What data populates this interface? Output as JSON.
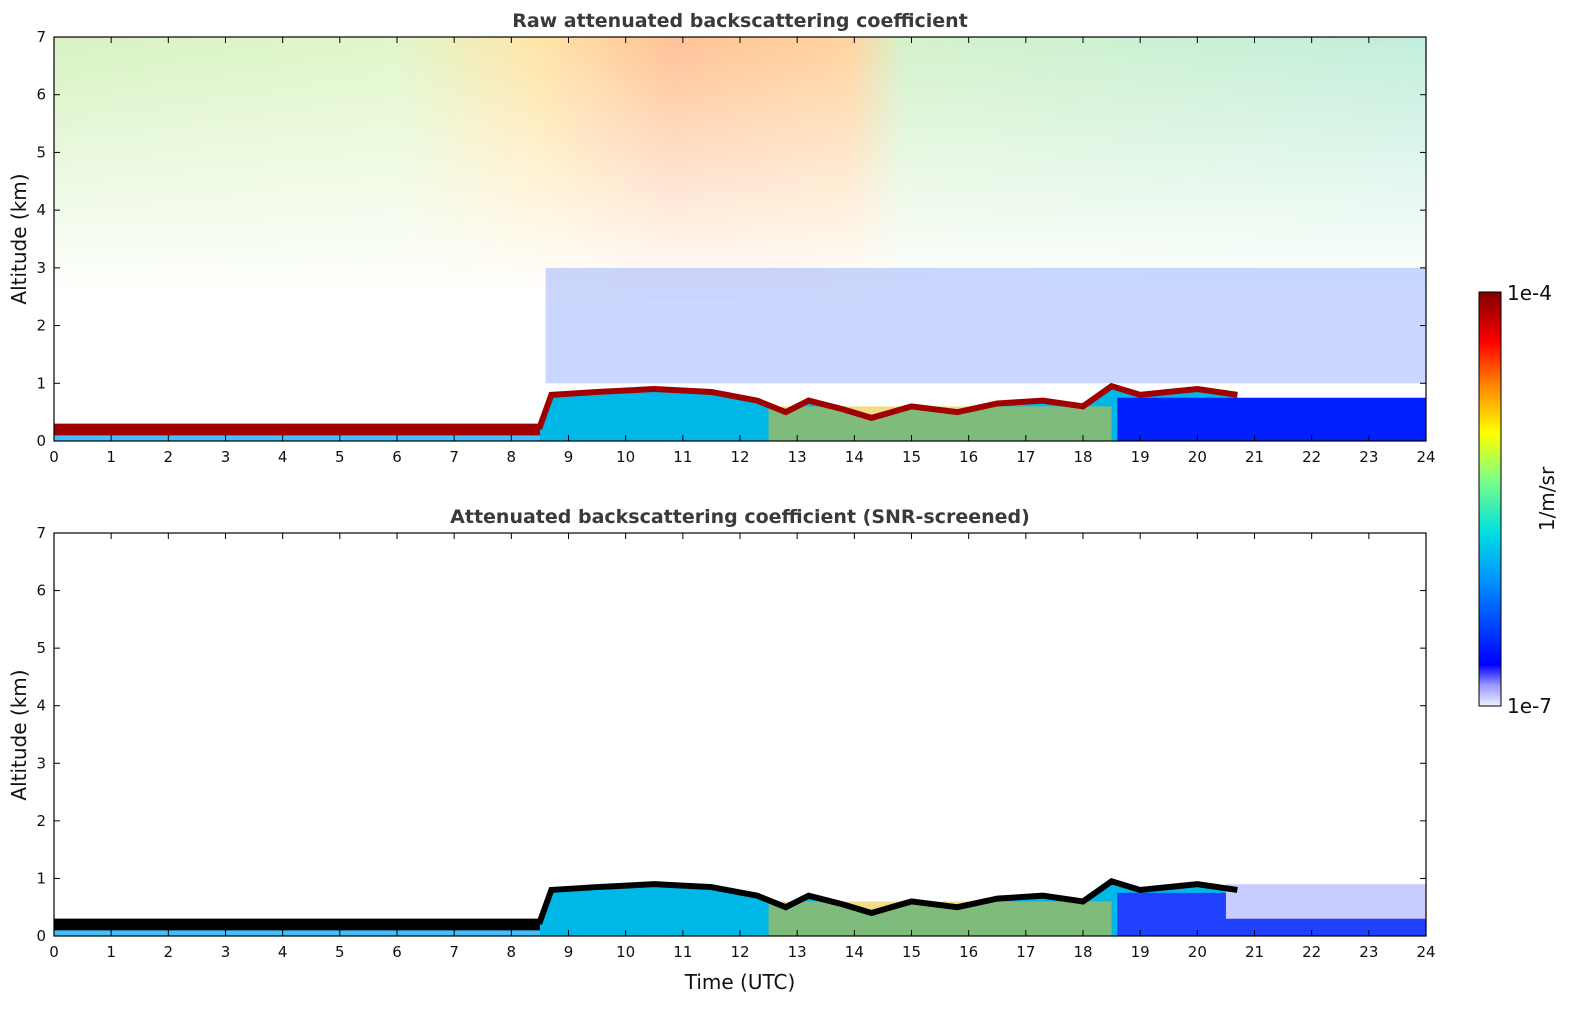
{
  "chart_data": [
    {
      "type": "heatmap",
      "id": "raw",
      "title": "Raw attenuated backscattering coefficient",
      "xlabel": "",
      "ylabel": "Altitude (km)",
      "xlim": [
        0,
        24
      ],
      "ylim": [
        0,
        7
      ],
      "xticks": [
        0,
        1,
        2,
        3,
        4,
        5,
        6,
        7,
        8,
        9,
        10,
        11,
        12,
        13,
        14,
        15,
        16,
        17,
        18,
        19,
        20,
        21,
        22,
        23,
        24
      ],
      "yticks": [
        0,
        1,
        2,
        3,
        4,
        5,
        6,
        7
      ],
      "aerosol_layer_top_km": [
        {
          "t": 0,
          "z": 0.25
        },
        {
          "t": 8.5,
          "z": 0.25
        },
        {
          "t": 8.7,
          "z": 0.8
        },
        {
          "t": 9.5,
          "z": 0.85
        },
        {
          "t": 10.5,
          "z": 0.9
        },
        {
          "t": 11.5,
          "z": 0.85
        },
        {
          "t": 12.3,
          "z": 0.7
        },
        {
          "t": 12.8,
          "z": 0.5
        },
        {
          "t": 13.2,
          "z": 0.7
        },
        {
          "t": 13.8,
          "z": 0.55
        },
        {
          "t": 14.3,
          "z": 0.4
        },
        {
          "t": 15,
          "z": 0.6
        },
        {
          "t": 15.8,
          "z": 0.5
        },
        {
          "t": 16.5,
          "z": 0.65
        },
        {
          "t": 17.3,
          "z": 0.7
        },
        {
          "t": 18,
          "z": 0.6
        },
        {
          "t": 18.5,
          "z": 0.95
        },
        {
          "t": 19,
          "z": 0.8
        },
        {
          "t": 20,
          "z": 0.9
        },
        {
          "t": 20.7,
          "z": 0.8
        }
      ]
    },
    {
      "type": "heatmap",
      "id": "screened",
      "title": "Attenuated backscattering coefficient (SNR-screened)",
      "xlabel": "Time (UTC)",
      "ylabel": "Altitude (km)",
      "xlim": [
        0,
        24
      ],
      "ylim": [
        0,
        7
      ],
      "xticks": [
        0,
        1,
        2,
        3,
        4,
        5,
        6,
        7,
        8,
        9,
        10,
        11,
        12,
        13,
        14,
        15,
        16,
        17,
        18,
        19,
        20,
        21,
        22,
        23,
        24
      ],
      "yticks": [
        0,
        1,
        2,
        3,
        4,
        5,
        6,
        7
      ]
    }
  ],
  "colorbar": {
    "label": "1/m/sr",
    "max_label": "1e-4",
    "min_label": "1e-7",
    "colormap": [
      "#eef0ff",
      "#0000ff",
      "#00a0ff",
      "#00e0e0",
      "#80ff80",
      "#ffff00",
      "#ff8000",
      "#ff0000",
      "#800000"
    ]
  }
}
